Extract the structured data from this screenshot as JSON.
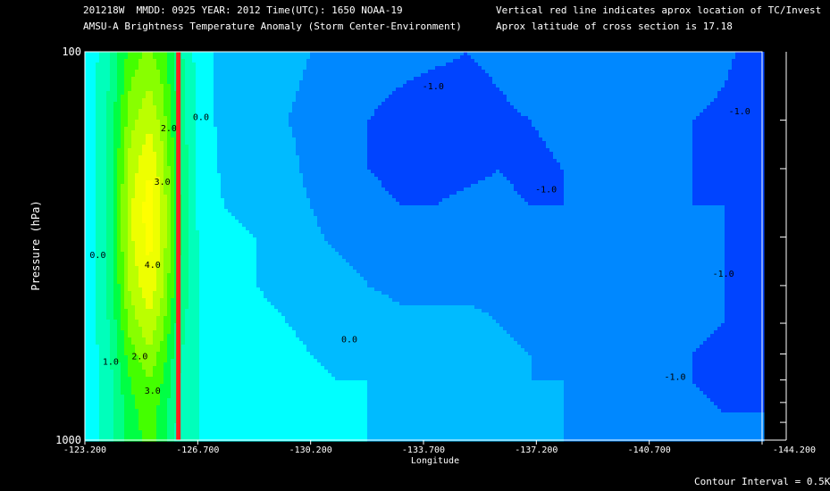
{
  "header": {
    "line1_left": "201218W  MMDD: 0925 YEAR: 2012 Time(UTC): 1650 NOAA-19",
    "line2_left": "AMSU-A Brightness Temperature Anomaly (Storm Center-Environment)",
    "line1_right": "Vertical red line indicates aprox location of TC/Invest",
    "line2_right": "Aprox latitude of cross section is 17.18"
  },
  "footer": {
    "contour_interval": "Contour Interval = 0.5K"
  },
  "colors": {
    "background": "#000000",
    "tc_line": "#ff2020",
    "fill_levels": [
      "#0000ff",
      "#0044ff",
      "#0088ff",
      "#00bbff",
      "#00ffff",
      "#00ffbb",
      "#00ff88",
      "#00ff44",
      "#44ff00",
      "#88ff00",
      "#bbff00",
      "#eeff00",
      "#ffff00"
    ]
  },
  "chart_data": {
    "type": "contour",
    "title": "AMSU-A Brightness Temperature Anomaly (Storm Center-Environment)",
    "xlabel": "Longitude",
    "ylabel": "Pressure (hPa)",
    "xlim": [
      -123.2,
      -144.2
    ],
    "ylim": [
      1000,
      100
    ],
    "y_scale": "log",
    "x_ticks": [
      "-123.200",
      "-126.700",
      "-130.200",
      "-133.700",
      "-137.200",
      "-140.700",
      "-144.200"
    ],
    "x_tick_values": [
      -123.2,
      -126.7,
      -130.2,
      -133.7,
      -137.2,
      -140.7,
      -144.2
    ],
    "y_ticks": [
      "100",
      "1000"
    ],
    "y_tick_values": [
      100,
      1000
    ],
    "right_minor_pressures": [
      150,
      200,
      300,
      400,
      500,
      600,
      700,
      800,
      900
    ],
    "tc_longitude": -126.1,
    "contour_interval": 0.5,
    "contour_labels": [
      {
        "text": "0.0",
        "lon": -126.8,
        "p": 150
      },
      {
        "text": "-1.0",
        "lon": -134.0,
        "p": 125
      },
      {
        "text": "-1.0",
        "lon": -137.5,
        "p": 230
      },
      {
        "text": "-1.0",
        "lon": -143.5,
        "p": 145
      },
      {
        "text": "-1.0",
        "lon": -143.0,
        "p": 380
      },
      {
        "text": "-1.0",
        "lon": -141.5,
        "p": 700
      },
      {
        "text": "0.0",
        "lon": -123.6,
        "p": 340
      },
      {
        "text": "0.0",
        "lon": -131.4,
        "p": 560
      },
      {
        "text": "1.0",
        "lon": -124.0,
        "p": 640
      },
      {
        "text": "2.0",
        "lon": -124.9,
        "p": 620
      },
      {
        "text": "3.0",
        "lon": -125.3,
        "p": 760
      },
      {
        "text": "4.0",
        "lon": -125.3,
        "p": 360
      },
      {
        "text": "3.0",
        "lon": -125.6,
        "p": 220
      },
      {
        "text": "2.0",
        "lon": -125.8,
        "p": 160
      }
    ],
    "profile_pressures": [
      100,
      150,
      200,
      250,
      300,
      400,
      500,
      600,
      700,
      850,
      1000
    ],
    "profile_longitudes": [
      -123.2,
      -124.0,
      -124.6,
      -125.2,
      -125.6,
      -126.1,
      -126.7,
      -127.5,
      -128.5,
      -129.5,
      -130.2,
      -131.0,
      -132.0,
      -133.0,
      -134.0,
      -135.0,
      -136.0,
      -137.0,
      -138.0,
      -139.0,
      -140.0,
      -141.0,
      -142.0,
      -143.0,
      -144.2
    ],
    "anomaly_grid": [
      [
        0.0,
        1.0,
        2.2,
        2.6,
        2.2,
        1.2,
        0.3,
        -0.2,
        -0.3,
        -0.4,
        -0.5,
        -0.6,
        -0.7,
        -0.8,
        -0.9,
        -1.0,
        -0.9,
        -0.7,
        -0.6,
        -0.5,
        -0.5,
        -0.6,
        -0.7,
        -0.9,
        -1.2
      ],
      [
        0.0,
        1.2,
        2.8,
        3.4,
        2.8,
        1.4,
        0.4,
        -0.2,
        -0.3,
        -0.5,
        -0.6,
        -0.8,
        -1.0,
        -1.2,
        -1.3,
        -1.2,
        -1.1,
        -1.0,
        -0.9,
        -0.8,
        -0.8,
        -0.9,
        -1.0,
        -1.1,
        -1.3
      ],
      [
        0.0,
        1.3,
        3.2,
        4.0,
        3.2,
        1.5,
        0.4,
        -0.1,
        -0.2,
        -0.4,
        -0.6,
        -0.8,
        -1.0,
        -1.1,
        -1.2,
        -1.1,
        -1.0,
        -1.1,
        -1.0,
        -0.9,
        -0.9,
        -1.0,
        -1.0,
        -1.1,
        -1.2
      ],
      [
        0.0,
        1.3,
        3.4,
        4.3,
        3.4,
        1.6,
        0.4,
        0.0,
        -0.1,
        -0.3,
        -0.5,
        -0.7,
        -0.9,
        -1.0,
        -1.0,
        -0.9,
        -0.9,
        -1.0,
        -1.0,
        -0.9,
        -0.9,
        -1.0,
        -1.0,
        -1.0,
        -1.1
      ],
      [
        0.0,
        1.3,
        3.4,
        4.2,
        3.4,
        1.6,
        0.5,
        0.1,
        0.0,
        -0.2,
        -0.4,
        -0.6,
        -0.7,
        -0.8,
        -0.8,
        -0.8,
        -0.8,
        -0.9,
        -0.9,
        -0.9,
        -0.9,
        -0.9,
        -0.9,
        -1.0,
        -1.1
      ],
      [
        0.0,
        1.2,
        3.1,
        3.9,
        3.1,
        1.5,
        0.5,
        0.2,
        0.0,
        -0.1,
        -0.2,
        -0.3,
        -0.5,
        -0.6,
        -0.6,
        -0.6,
        -0.6,
        -0.7,
        -0.8,
        -0.8,
        -0.8,
        -0.8,
        -0.9,
        -1.0,
        -1.1
      ],
      [
        0.0,
        1.1,
        2.7,
        3.4,
        2.7,
        1.3,
        0.5,
        0.2,
        0.1,
        0.0,
        -0.1,
        -0.2,
        -0.3,
        -0.4,
        -0.4,
        -0.4,
        -0.5,
        -0.6,
        -0.7,
        -0.7,
        -0.8,
        -0.9,
        -0.9,
        -1.0,
        -1.0
      ],
      [
        0.0,
        1.0,
        2.3,
        2.9,
        2.3,
        1.1,
        0.5,
        0.3,
        0.2,
        0.1,
        0.0,
        -0.1,
        -0.1,
        -0.2,
        -0.2,
        -0.3,
        -0.4,
        -0.5,
        -0.6,
        -0.7,
        -0.8,
        -0.9,
        -1.0,
        -1.1,
        -1.1
      ],
      [
        0.1,
        0.9,
        2.0,
        2.5,
        2.0,
        1.0,
        0.5,
        0.3,
        0.2,
        0.1,
        0.1,
        0.0,
        0.0,
        -0.1,
        -0.2,
        -0.3,
        -0.4,
        -0.5,
        -0.5,
        -0.6,
        -0.7,
        -0.9,
        -1.0,
        -1.1,
        -1.2
      ],
      [
        0.1,
        0.8,
        1.8,
        2.3,
        1.8,
        0.9,
        0.5,
        0.3,
        0.3,
        0.2,
        0.1,
        0.0,
        0.0,
        -0.1,
        -0.2,
        -0.2,
        -0.3,
        -0.4,
        -0.5,
        -0.6,
        -0.7,
        -0.8,
        -0.9,
        -1.0,
        -1.0
      ],
      [
        0.1,
        0.8,
        1.7,
        2.2,
        1.7,
        0.8,
        0.5,
        0.3,
        0.3,
        0.2,
        0.1,
        0.0,
        0.0,
        -0.1,
        -0.2,
        -0.2,
        -0.3,
        -0.4,
        -0.5,
        -0.5,
        -0.6,
        -0.7,
        -0.8,
        -0.9,
        -1.0
      ]
    ]
  }
}
